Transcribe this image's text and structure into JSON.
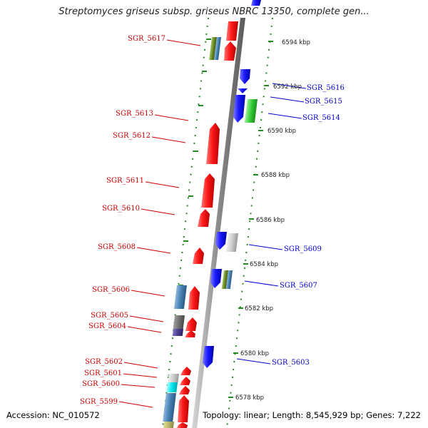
{
  "title": "Streptomyces griseus subsp. griseus NBRC 13350, complete gen...",
  "footer": {
    "accession": "Accession: NC_010572",
    "summary": "Topology: linear; Length: 8,545,929 bp; Genes: 7,222"
  },
  "scale_labels": [
    "6594 kbp",
    "6592 kbp",
    "6590 kbp",
    "6588 kbp",
    "6586 kbp",
    "6584 kbp",
    "6582 kbp",
    "6580 kbp",
    "6578 kbp"
  ],
  "genes_left": [
    "SGR_5617",
    "SGR_5613",
    "SGR_5612",
    "SGR_5611",
    "SGR_5610",
    "SGR_5608",
    "SGR_5606",
    "SGR_5605",
    "SGR_5604",
    "SGR_5602",
    "SGR_5601",
    "SGR_5600",
    "SGR_5599"
  ],
  "genes_right": [
    "SGR_5616",
    "SGR_5615",
    "SGR_5614",
    "SGR_5609",
    "SGR_5607",
    "SGR_5603"
  ],
  "colors": {
    "forward_strand": "#ee0000",
    "reverse_strand": "#0000ee",
    "gene_green": "#33cc33",
    "gene_grey": "#c8c8c8",
    "gene_steelblue": "#4682b4",
    "gene_olive": "#6b8e23",
    "gene_cyan": "#00e5ee",
    "gene_darkgrey": "#707070",
    "gene_slate": "#4a3f8f",
    "gene_khaki": "#bdb76b",
    "backbone": "#8a8a8a",
    "dotted_guides": "#228b22",
    "left_label": "#cc0000",
    "right_label": "#0000cc"
  }
}
